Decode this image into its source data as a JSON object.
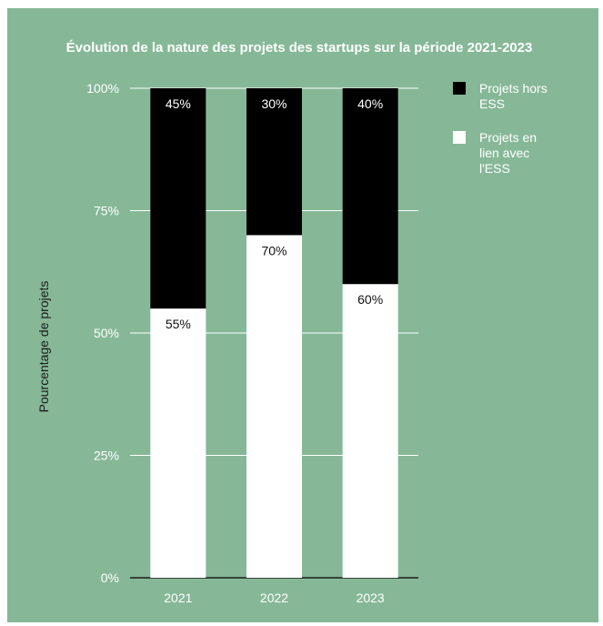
{
  "chart_data": {
    "type": "bar",
    "stacked": true,
    "title": "Évolution de la nature des projets des startups sur la période 2021-2023",
    "xlabel": "",
    "ylabel": "Pourcentage de projets",
    "ylim": [
      0,
      100
    ],
    "yticks": [
      "0%",
      "25%",
      "50%",
      "75%",
      "100%"
    ],
    "ytick_values": [
      0,
      25,
      50,
      75,
      100
    ],
    "grid": true,
    "legend_position": "right",
    "categories": [
      "2021",
      "2022",
      "2023"
    ],
    "series": [
      {
        "name": "Projets en lien avec l'ESS",
        "legend_lines": [
          "Projets en",
          "lien avec",
          "l'ESS"
        ],
        "color": "#ffffff",
        "label_color": "#111111",
        "values": [
          55,
          70,
          60
        ],
        "labels": [
          "55%",
          "70%",
          "60%"
        ]
      },
      {
        "name": "Projets hors ESS",
        "legend_lines": [
          "Projets hors",
          "ESS"
        ],
        "color": "#000000",
        "label_color": "#ffffff",
        "values": [
          45,
          30,
          40
        ],
        "labels": [
          "45%",
          "30%",
          "40%"
        ]
      }
    ],
    "legend_order": [
      1,
      0
    ],
    "colors": {
      "background": "#86b897",
      "text": "#ffffff",
      "gridline": "#ffffff",
      "baseline": "#1a1a1a"
    }
  }
}
